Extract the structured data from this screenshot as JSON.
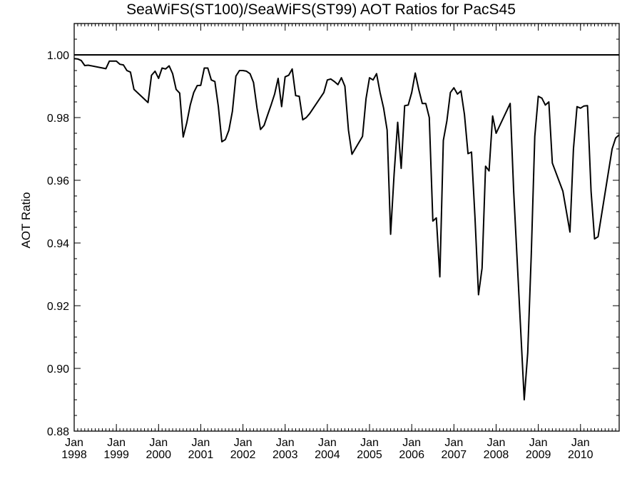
{
  "chart_data": {
    "type": "line",
    "title": "SeaWiFS(ST100)/SeaWiFS(ST99)  AOT Ratios for PacS45",
    "xlabel": "",
    "ylabel": "AOT Ratio",
    "xlim": [
      "1998-01-01",
      "2010-12-01"
    ],
    "ylim": [
      0.88,
      1.01
    ],
    "grid": false,
    "yticks": [
      0.88,
      0.9,
      0.92,
      0.94,
      0.96,
      0.98,
      1.0
    ],
    "ytick_labels": [
      "0.88",
      "0.90",
      "0.92",
      "0.94",
      "0.96",
      "0.98",
      "1.00"
    ],
    "xtick_dates": [
      "1998-01-01",
      "1999-01-01",
      "2000-01-01",
      "2001-01-01",
      "2002-01-01",
      "2003-01-01",
      "2004-01-01",
      "2005-01-01",
      "2006-01-01",
      "2007-01-01",
      "2008-01-01",
      "2009-01-01",
      "2010-01-01"
    ],
    "xtick_labels": [
      [
        "Jan",
        "1998"
      ],
      [
        "Jan",
        "1999"
      ],
      [
        "Jan",
        "2000"
      ],
      [
        "Jan",
        "2001"
      ],
      [
        "Jan",
        "2002"
      ],
      [
        "Jan",
        "2003"
      ],
      [
        "Jan",
        "2004"
      ],
      [
        "Jan",
        "2005"
      ],
      [
        "Jan",
        "2006"
      ],
      [
        "Jan",
        "2007"
      ],
      [
        "Jan",
        "2008"
      ],
      [
        "Jan",
        "2009"
      ],
      [
        "Jan",
        "2010"
      ]
    ],
    "reference_line": {
      "y": 1.0
    },
    "series": [
      {
        "color": "#000000",
        "x": [
          "1998-01-01",
          "1998-02-01",
          "1998-03-01",
          "1998-04-01",
          "1998-05-01",
          "1998-10-01",
          "1998-11-01",
          "1998-12-01",
          "1999-01-01",
          "1999-02-01",
          "1999-03-01",
          "1999-04-01",
          "1999-05-01",
          "1999-06-01",
          "1999-10-01",
          "1999-11-01",
          "1999-12-01",
          "2000-01-01",
          "2000-02-01",
          "2000-03-01",
          "2000-04-01",
          "2000-05-01",
          "2000-06-01",
          "2000-07-01",
          "2000-08-01",
          "2000-09-01",
          "2000-10-01",
          "2000-11-01",
          "2000-12-01",
          "2001-01-01",
          "2001-02-01",
          "2001-03-01",
          "2001-04-01",
          "2001-05-01",
          "2001-06-01",
          "2001-07-01",
          "2001-08-01",
          "2001-09-01",
          "2001-10-01",
          "2001-11-01",
          "2001-12-01",
          "2002-01-01",
          "2002-02-01",
          "2002-03-01",
          "2002-04-01",
          "2002-05-01",
          "2002-06-01",
          "2002-07-01",
          "2002-08-01",
          "2002-09-01",
          "2002-10-01",
          "2002-11-01",
          "2002-12-01",
          "2003-01-01",
          "2003-02-01",
          "2003-03-01",
          "2003-04-01",
          "2003-05-01",
          "2003-06-01",
          "2003-07-01",
          "2003-08-01",
          "2003-12-01",
          "2004-01-01",
          "2004-02-01",
          "2004-03-01",
          "2004-04-01",
          "2004-05-01",
          "2004-06-01",
          "2004-07-01",
          "2004-08-01",
          "2004-11-01",
          "2004-12-01",
          "2005-01-01",
          "2005-02-01",
          "2005-03-01",
          "2005-04-01",
          "2005-05-01",
          "2005-06-01",
          "2005-07-01",
          "2005-08-01",
          "2005-09-01",
          "2005-10-01",
          "2005-11-01",
          "2005-12-01",
          "2006-01-01",
          "2006-02-01",
          "2006-03-01",
          "2006-04-01",
          "2006-05-01",
          "2006-06-01",
          "2006-07-01",
          "2006-08-01",
          "2006-09-01",
          "2006-10-01",
          "2006-11-01",
          "2006-12-01",
          "2007-01-01",
          "2007-02-01",
          "2007-03-01",
          "2007-04-01",
          "2007-05-01",
          "2007-06-01",
          "2007-07-01",
          "2007-08-01",
          "2007-09-01",
          "2007-10-01",
          "2007-11-01",
          "2007-12-01",
          "2008-01-01",
          "2008-05-01",
          "2008-06-01",
          "2008-09-01",
          "2008-10-01",
          "2008-11-01",
          "2008-12-01",
          "2009-01-01",
          "2009-02-01",
          "2009-03-01",
          "2009-04-01",
          "2009-05-01",
          "2009-08-01",
          "2009-10-01",
          "2009-11-01",
          "2009-12-01",
          "2010-01-01",
          "2010-02-01",
          "2010-03-01",
          "2010-04-01",
          "2010-05-01",
          "2010-06-01",
          "2010-10-01",
          "2010-11-01",
          "2010-12-01"
        ],
        "y": [
          0.9988,
          0.9987,
          0.9982,
          0.9966,
          0.9967,
          0.9956,
          0.998,
          0.998,
          0.998,
          0.997,
          0.9968,
          0.995,
          0.9945,
          0.989,
          0.9848,
          0.9935,
          0.9948,
          0.9925,
          0.9958,
          0.9955,
          0.9965,
          0.994,
          0.989,
          0.9878,
          0.9738,
          0.9782,
          0.984,
          0.988,
          0.9902,
          0.9903,
          0.9958,
          0.9958,
          0.992,
          0.9915,
          0.9835,
          0.9723,
          0.973,
          0.976,
          0.982,
          0.9932,
          0.995,
          0.995,
          0.9948,
          0.994,
          0.9912,
          0.983,
          0.9762,
          0.9775,
          0.9808,
          0.984,
          0.9875,
          0.9925,
          0.9835,
          0.993,
          0.9935,
          0.9955,
          0.987,
          0.9868,
          0.9793,
          0.98,
          0.9813,
          0.988,
          0.992,
          0.9923,
          0.9915,
          0.9905,
          0.9927,
          0.99,
          0.976,
          0.9683,
          0.974,
          0.986,
          0.9927,
          0.992,
          0.994,
          0.988,
          0.983,
          0.976,
          0.9428,
          0.962,
          0.9785,
          0.9638,
          0.9838,
          0.984,
          0.988,
          0.9942,
          0.989,
          0.9845,
          0.9845,
          0.98,
          0.947,
          0.948,
          0.9292,
          0.9727,
          0.979,
          0.988,
          0.9895,
          0.9875,
          0.9885,
          0.981,
          0.9685,
          0.969,
          0.948,
          0.9235,
          0.932,
          0.9645,
          0.963,
          0.9805,
          0.975,
          0.9845,
          0.9565,
          0.89,
          0.905,
          0.9365,
          0.974,
          0.9868,
          0.9862,
          0.984,
          0.985,
          0.9655,
          0.9565,
          0.9435,
          0.97,
          0.9835,
          0.983,
          0.9837,
          0.9838,
          0.9565,
          0.9413,
          0.942,
          0.97,
          0.9735,
          0.9745
        ]
      }
    ]
  }
}
